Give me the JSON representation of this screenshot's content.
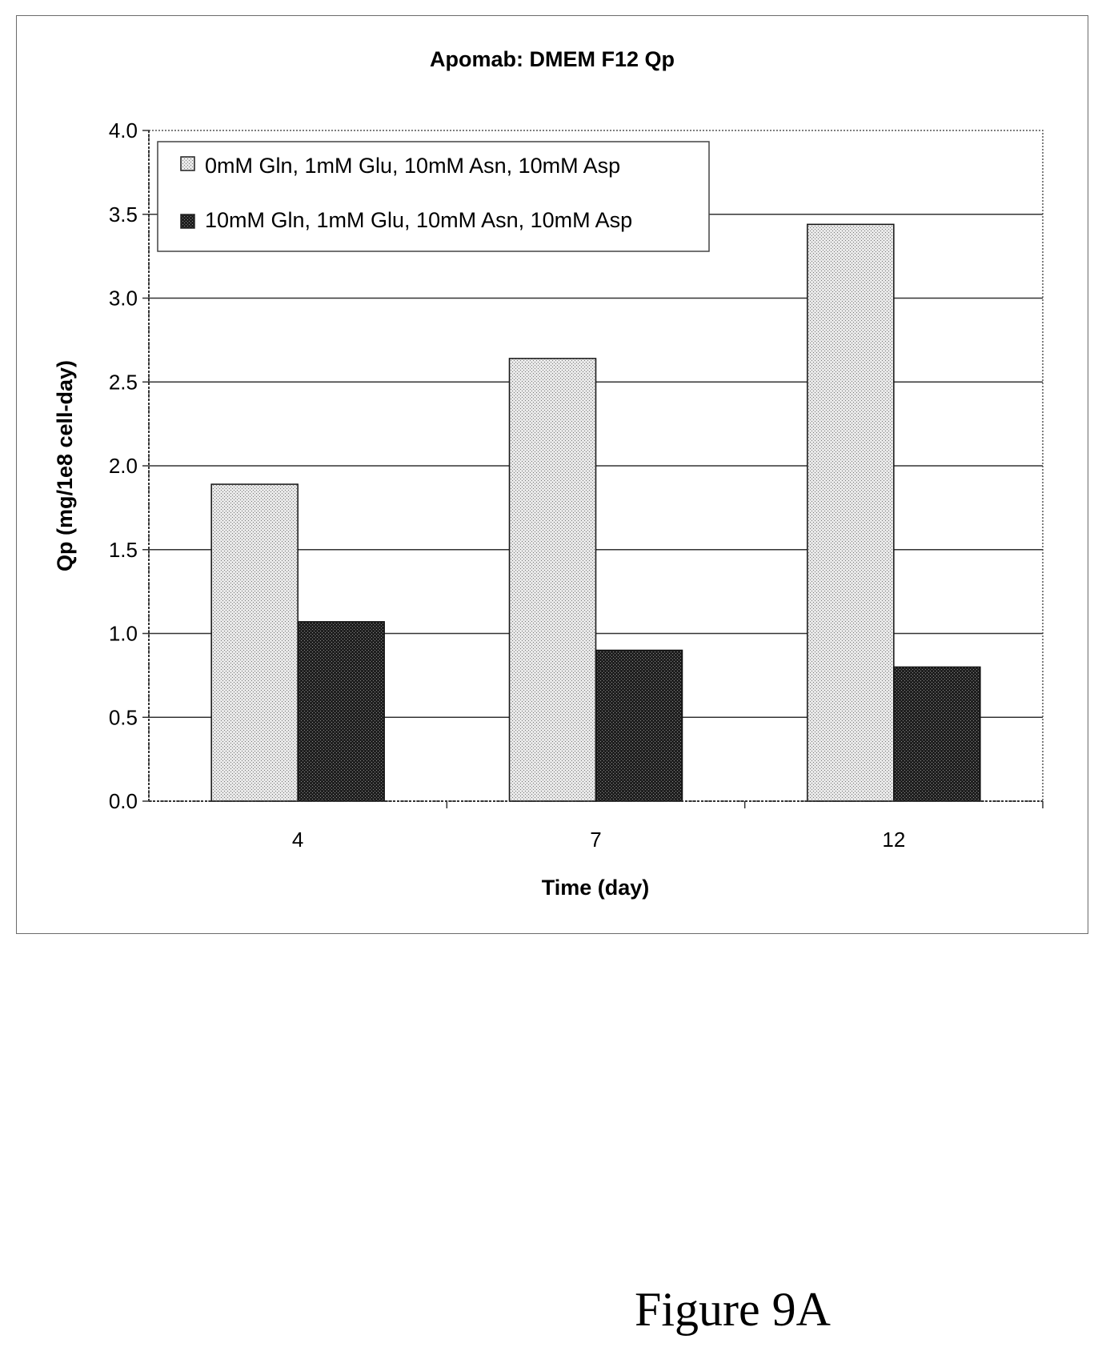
{
  "chart_data": {
    "type": "bar",
    "title": "Apomab: DMEM F12 Qp",
    "xlabel": "Time (day)",
    "ylabel": "Qp (mg/1e8 cell-day)",
    "categories": [
      "4",
      "7",
      "12"
    ],
    "ylim": [
      0,
      4.0
    ],
    "yticks": [
      "0.0",
      "0.5",
      "1.0",
      "1.5",
      "2.0",
      "2.5",
      "3.0",
      "3.5",
      "4.0"
    ],
    "grid": true,
    "legend_position": "top-left",
    "series": [
      {
        "name": "0mM Gln, 1mM Glu, 10mM Asn, 10mM Asp",
        "values": [
          1.89,
          2.64,
          3.44
        ],
        "color": "#d4d4d4",
        "pattern": "light-dotted"
      },
      {
        "name": "10mM Gln, 1mM Glu, 10mM Asn, 10mM Asp",
        "values": [
          1.07,
          0.9,
          0.8
        ],
        "color": "#2a2a2a",
        "pattern": "dark-dotted"
      }
    ]
  },
  "caption": "Figure 9A"
}
